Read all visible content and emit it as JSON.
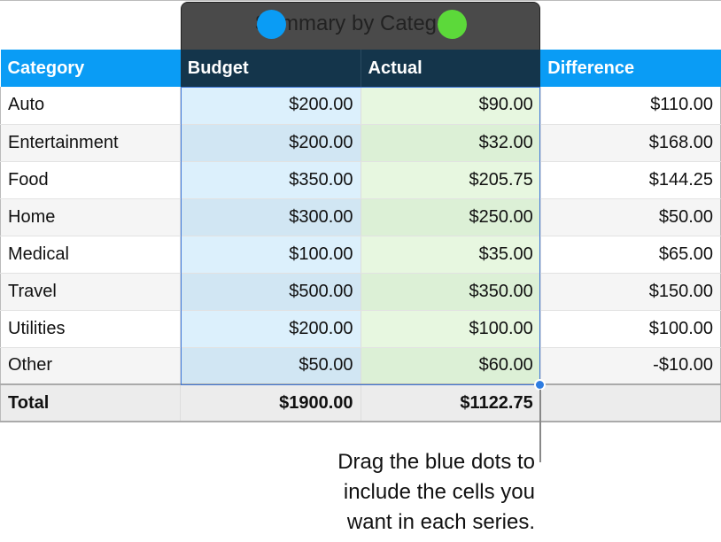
{
  "chart_title": "Summary by Category",
  "columns": [
    "Category",
    "Budget",
    "Actual",
    "Difference"
  ],
  "rows": [
    [
      "Auto",
      "$200.00",
      "$90.00",
      "$110.00"
    ],
    [
      "Entertainment",
      "$200.00",
      "$32.00",
      "$168.00"
    ],
    [
      "Food",
      "$350.00",
      "$205.75",
      "$144.25"
    ],
    [
      "Home",
      "$300.00",
      "$250.00",
      "$50.00"
    ],
    [
      "Medical",
      "$100.00",
      "$35.00",
      "$65.00"
    ],
    [
      "Travel",
      "$500.00",
      "$350.00",
      "$150.00"
    ],
    [
      "Utilities",
      "$200.00",
      "$100.00",
      "$100.00"
    ],
    [
      "Other",
      "$50.00",
      "$60.00",
      "-$10.00"
    ]
  ],
  "total": [
    "Total",
    "$1900.00",
    "$1122.75",
    ""
  ],
  "series_colors": {
    "budget": "#0a9cf5",
    "actual": "#5cd93a",
    "selection": "#3f78d8"
  },
  "callout_lines": [
    "Drag the blue dots to",
    "include the cells you",
    "want in each series."
  ]
}
